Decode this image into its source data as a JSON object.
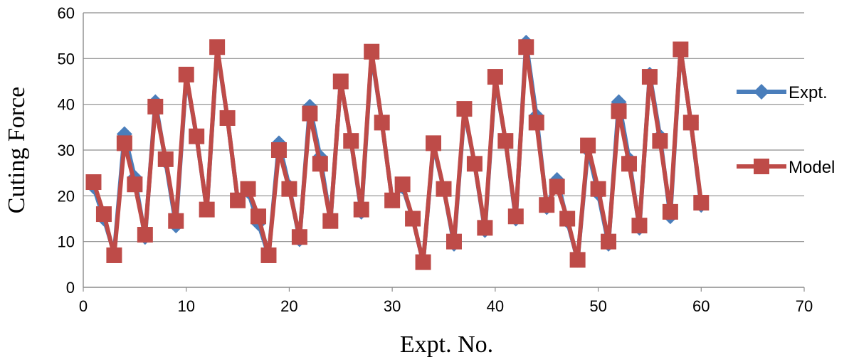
{
  "chart_data": {
    "type": "line",
    "title": "",
    "xlabel": "Expt. No.",
    "ylabel": "Cuting Force",
    "xlim": [
      0,
      70
    ],
    "ylim": [
      0,
      60
    ],
    "x_ticks": [
      0,
      10,
      20,
      30,
      40,
      50,
      60,
      70
    ],
    "y_ticks": [
      0,
      10,
      20,
      30,
      40,
      50,
      60
    ],
    "grid": "horizontal",
    "legend": "right",
    "x": [
      1,
      2,
      3,
      4,
      5,
      6,
      7,
      8,
      9,
      10,
      11,
      12,
      13,
      14,
      15,
      16,
      17,
      18,
      19,
      20,
      21,
      22,
      23,
      24,
      25,
      26,
      27,
      28,
      29,
      30,
      31,
      32,
      33,
      34,
      35,
      36,
      37,
      38,
      39,
      40,
      41,
      42,
      43,
      44,
      45,
      46,
      47,
      48,
      49,
      50,
      51,
      52,
      53,
      54,
      55,
      56,
      57,
      58,
      59,
      60
    ],
    "series": [
      {
        "name": "Expt.",
        "color": "#4A7EBB",
        "marker": "diamond",
        "values": [
          22,
          15,
          7.5,
          33.5,
          24,
          11,
          40.5,
          27.5,
          13.5,
          46,
          33,
          17,
          52,
          37,
          19,
          21,
          14,
          7,
          31.5,
          22,
          10.5,
          39.5,
          28.5,
          14.5,
          45,
          32,
          16.5,
          51,
          36,
          19,
          22,
          15,
          5.5,
          31,
          21.5,
          9.5,
          38.5,
          27,
          12.5,
          45.5,
          32,
          15,
          53.5,
          37.5,
          17.5,
          23.5,
          14.5,
          6,
          30,
          20.5,
          9.5,
          40.5,
          28,
          13,
          46.5,
          33,
          15.5,
          52,
          36,
          18
        ]
      },
      {
        "name": "Model",
        "color": "#BE4B48",
        "marker": "square",
        "values": [
          23,
          16,
          7,
          31.5,
          22.5,
          11.5,
          39.5,
          28,
          14.5,
          46.5,
          33,
          17,
          52.5,
          37,
          19,
          21.5,
          15.5,
          7,
          30,
          21.5,
          11,
          38,
          27,
          14.5,
          45,
          32,
          17,
          51.5,
          36,
          19,
          22.5,
          15,
          5.5,
          31.5,
          21.5,
          10,
          39,
          27,
          13,
          46,
          32,
          15.5,
          52.5,
          36,
          18,
          22,
          15,
          6,
          31,
          21.5,
          10,
          38.5,
          27,
          13.5,
          46,
          32,
          16.5,
          52,
          36,
          18.5
        ]
      }
    ]
  }
}
